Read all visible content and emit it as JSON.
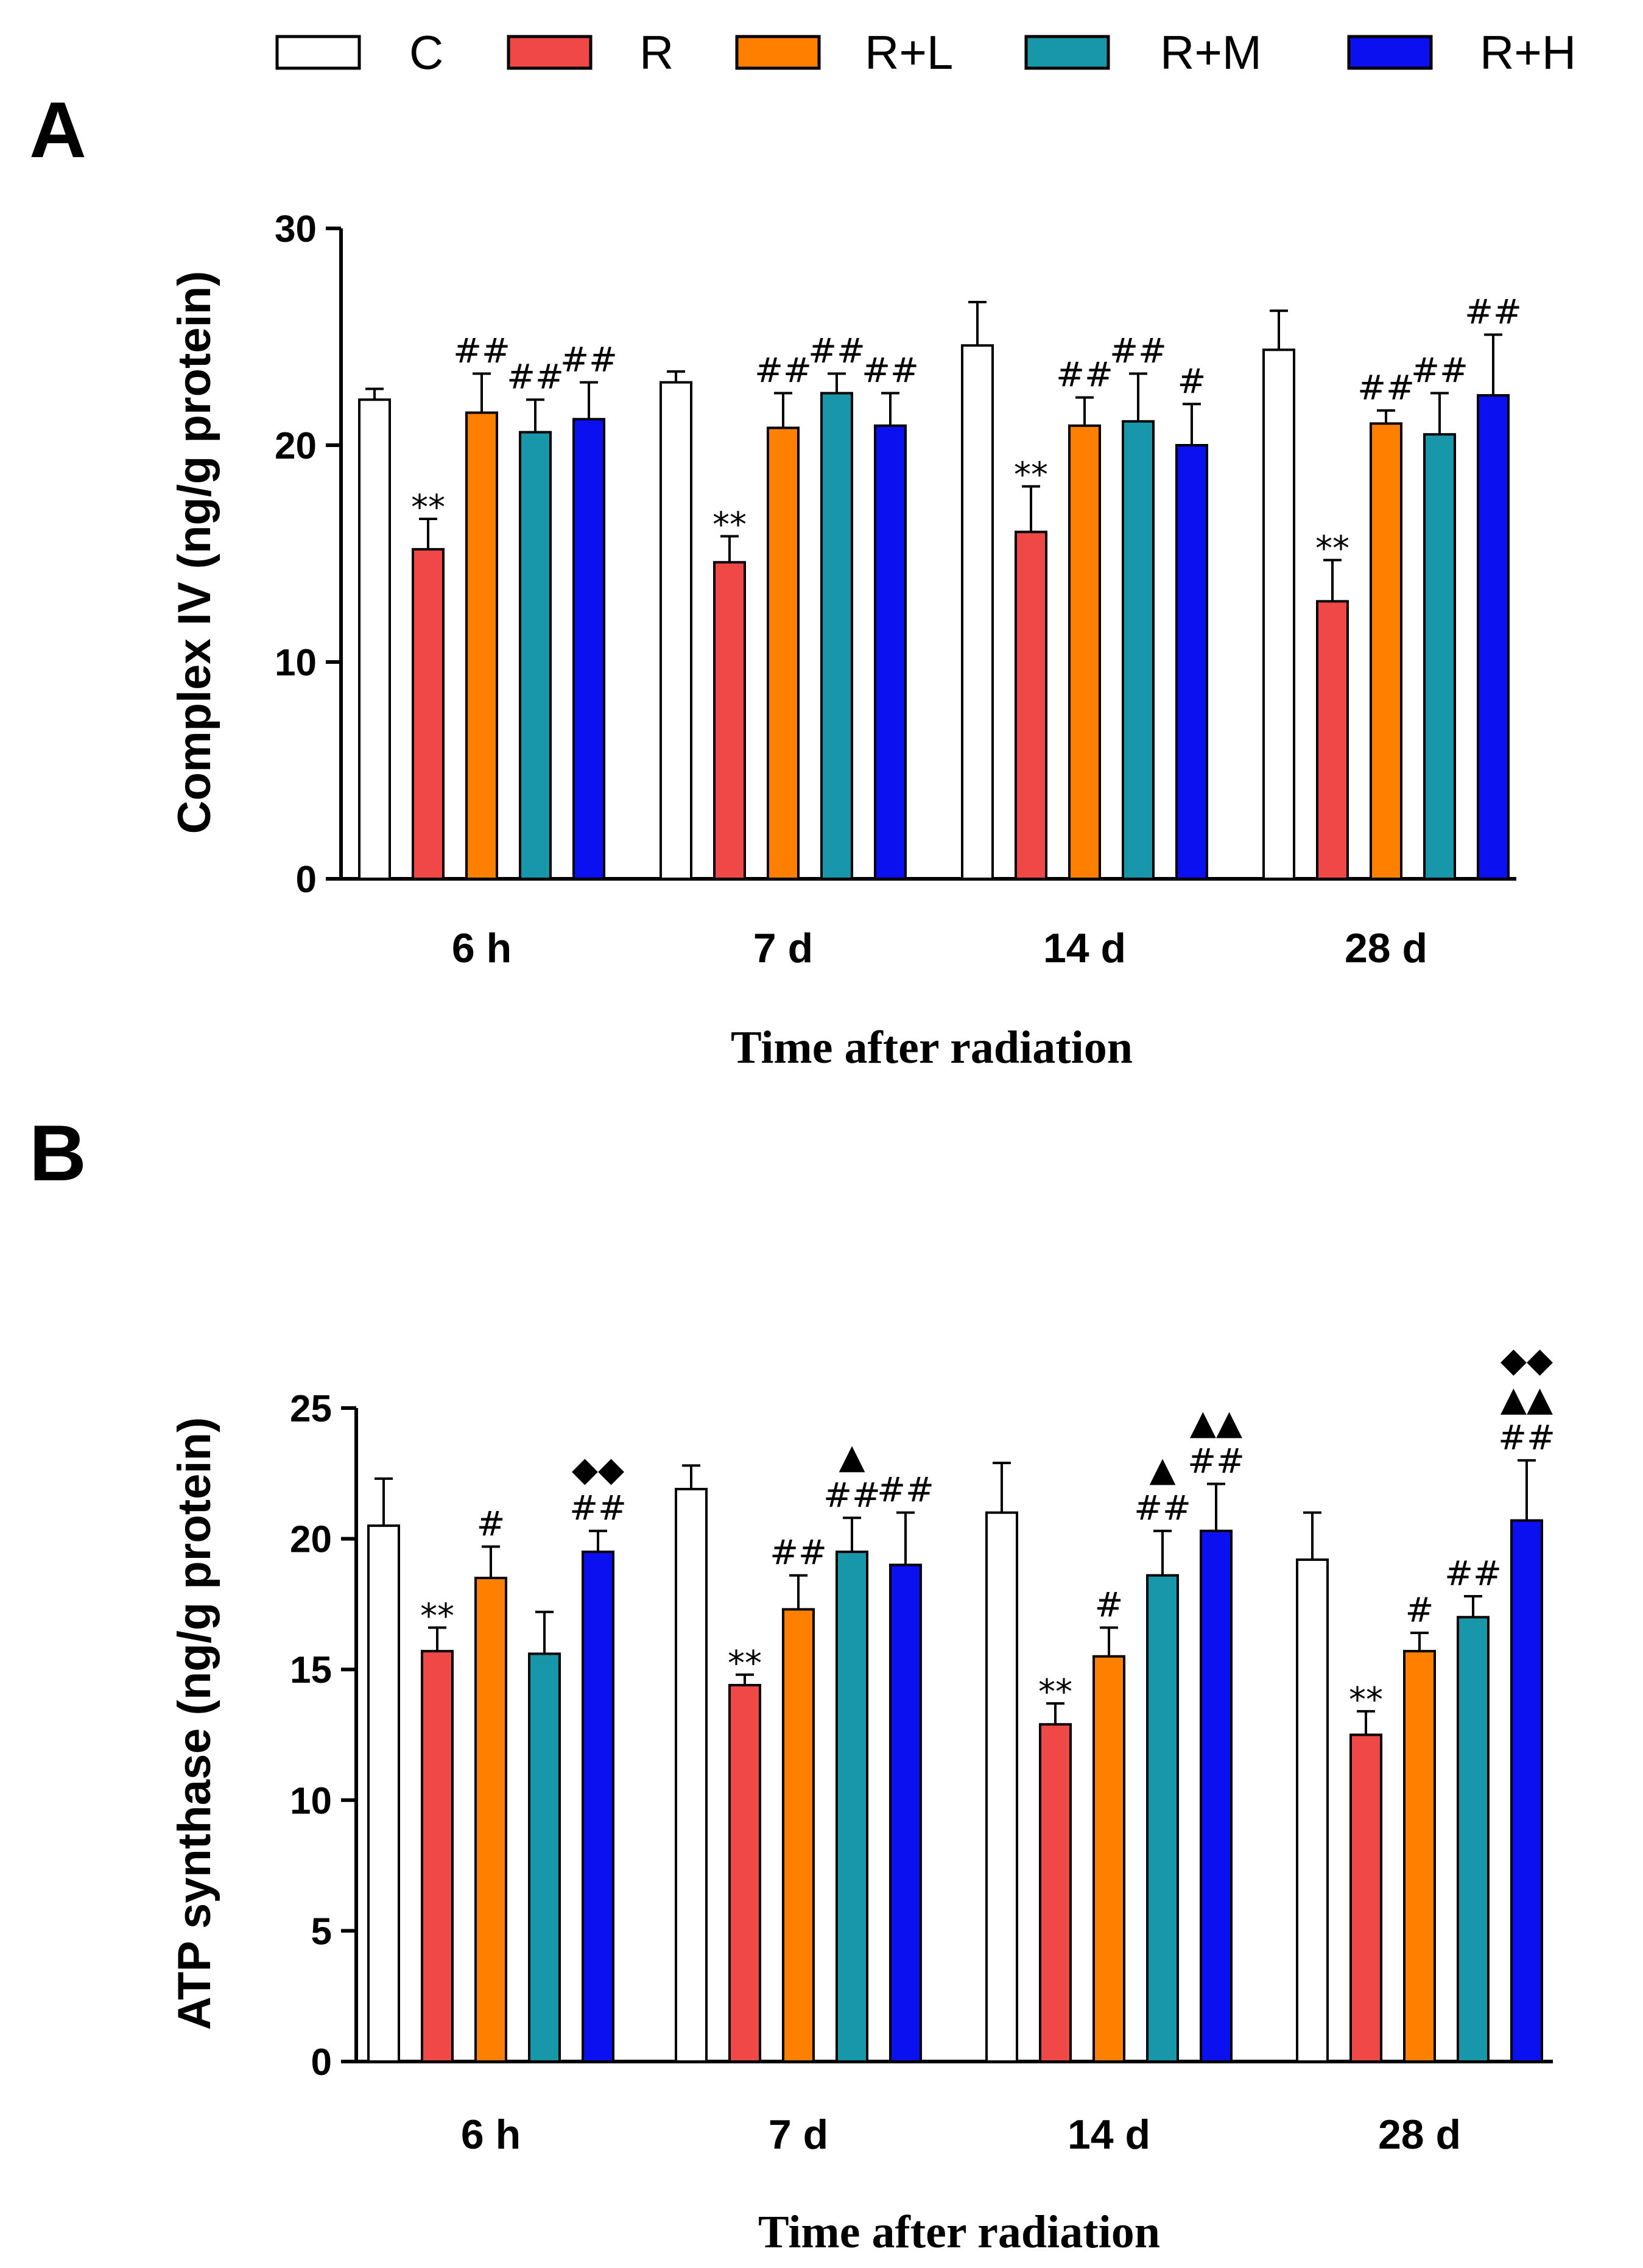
{
  "legend": {
    "groups": [
      {
        "label": "C",
        "color": "#ffffff"
      },
      {
        "label": "R",
        "color": "#f04747"
      },
      {
        "label": "R+L",
        "color": "#ff7f00"
      },
      {
        "label": "R+M",
        "color": "#1797a9"
      },
      {
        "label": "R+H",
        "color": "#0a10ef"
      }
    ]
  },
  "chart_data": [
    {
      "type": "bar",
      "panel": "A",
      "title": "",
      "xlabel": "Time after radiation",
      "ylabel": "Complex IV (ng/g protein)",
      "ylim": [
        0,
        30
      ],
      "yticks": [
        0,
        10,
        20,
        30
      ],
      "categories": [
        "6 h",
        "7 d",
        "14 d",
        "28 d"
      ],
      "series": [
        {
          "name": "C",
          "values": [
            22.1,
            22.9,
            24.6,
            24.4
          ],
          "errors": [
            0.5,
            0.5,
            2.0,
            1.8
          ],
          "annotations": [
            "",
            "",
            "",
            ""
          ]
        },
        {
          "name": "R",
          "values": [
            15.2,
            14.6,
            16.0,
            12.8
          ],
          "errors": [
            1.4,
            1.2,
            2.1,
            1.9
          ],
          "annotations": [
            "**",
            "**",
            "**",
            "**"
          ]
        },
        {
          "name": "R+L",
          "values": [
            21.5,
            20.8,
            20.9,
            21.0
          ],
          "errors": [
            1.8,
            1.6,
            1.3,
            0.6
          ],
          "annotations": [
            "##",
            "##",
            "##",
            "##"
          ]
        },
        {
          "name": "R+M",
          "values": [
            20.6,
            22.4,
            21.1,
            20.5
          ],
          "errors": [
            1.5,
            0.9,
            2.2,
            1.9
          ],
          "annotations": [
            "##",
            "##",
            "##",
            "##"
          ]
        },
        {
          "name": "R+H",
          "values": [
            21.2,
            20.9,
            20.0,
            22.3
          ],
          "errors": [
            1.7,
            1.5,
            1.9,
            2.8
          ],
          "annotations": [
            "##",
            "##",
            "#",
            "##"
          ]
        }
      ]
    },
    {
      "type": "bar",
      "panel": "B",
      "title": "",
      "xlabel": "Time after radiation",
      "ylabel": "ATP synthase (ng/g protein)",
      "ylim": [
        0,
        25
      ],
      "yticks": [
        0,
        5,
        10,
        15,
        20,
        25
      ],
      "categories": [
        "6 h",
        "7 d",
        "14 d",
        "28 d"
      ],
      "series": [
        {
          "name": "C",
          "values": [
            20.5,
            21.9,
            21.0,
            19.2
          ],
          "errors": [
            1.8,
            0.9,
            1.9,
            1.8
          ],
          "annotations": [
            [],
            [],
            [],
            []
          ]
        },
        {
          "name": "R",
          "values": [
            15.7,
            14.4,
            12.9,
            12.5
          ],
          "errors": [
            0.9,
            0.4,
            0.8,
            0.9
          ],
          "annotations": [
            [
              "**"
            ],
            [
              "**"
            ],
            [
              "**"
            ],
            [
              "**"
            ]
          ]
        },
        {
          "name": "R+L",
          "values": [
            18.5,
            17.3,
            15.5,
            15.7
          ],
          "errors": [
            1.2,
            1.3,
            1.1,
            0.7
          ],
          "annotations": [
            [
              "#"
            ],
            [
              "##"
            ],
            [
              "#"
            ],
            [
              "#"
            ]
          ]
        },
        {
          "name": "R+M",
          "values": [
            15.6,
            19.5,
            18.6,
            17.0
          ],
          "errors": [
            1.6,
            1.3,
            1.7,
            0.8
          ],
          "annotations": [
            [],
            [
              "##",
              "▲"
            ],
            [
              "##",
              "▲"
            ],
            [
              "##"
            ]
          ]
        },
        {
          "name": "R+H",
          "values": [
            19.5,
            19.0,
            20.3,
            20.7
          ],
          "errors": [
            0.8,
            2.0,
            1.8,
            2.3
          ],
          "annotations": [
            [
              "##",
              "◆◆"
            ],
            [
              "##"
            ],
            [
              "##",
              "▲▲"
            ],
            [
              "##",
              "▲▲",
              "◆◆"
            ]
          ]
        }
      ]
    }
  ]
}
